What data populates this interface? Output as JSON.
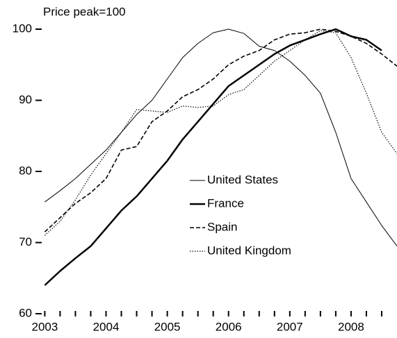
{
  "chart_data": {
    "type": "line",
    "y_label": "Price peak=100",
    "x": [
      2003,
      2003.25,
      2003.5,
      2003.75,
      2004,
      2004.25,
      2004.5,
      2004.75,
      2005,
      2005.25,
      2005.5,
      2005.75,
      2006,
      2006.25,
      2006.5,
      2006.75,
      2007,
      2007.25,
      2007.5,
      2007.75,
      2008,
      2008.25,
      2008.5,
      2008.75
    ],
    "series": [
      {
        "name": "United States",
        "color": "#000000",
        "line_width": 1,
        "line_style": "solid",
        "values": [
          75.7,
          77.3,
          79,
          81,
          83,
          85.5,
          88,
          90,
          93,
          96,
          98,
          99.5,
          100,
          99.4,
          97.6,
          97,
          95.5,
          93.5,
          91,
          85.5,
          79,
          75.7,
          72.4,
          69.5
        ]
      },
      {
        "name": "France",
        "color": "#000000",
        "line_width": 2.5,
        "line_style": "solid",
        "values": [
          64,
          66,
          67.8,
          69.5,
          72,
          74.5,
          76.5,
          79,
          81.5,
          84.5,
          87,
          89.5,
          92,
          93.5,
          95,
          96.5,
          97.7,
          98.5,
          99.3,
          100,
          99,
          98.5,
          97,
          null
        ]
      },
      {
        "name": "Spain",
        "color": "#000000",
        "line_width": 1.6,
        "line_style": "dashed",
        "values": [
          71.5,
          73.5,
          75.5,
          77,
          79,
          83,
          83.5,
          87,
          88.5,
          90.5,
          91.5,
          93,
          95,
          96.2,
          97,
          98.5,
          99.3,
          99.5,
          100,
          99.7,
          99,
          98,
          96.5,
          94.8
        ]
      },
      {
        "name": "United Kingdom",
        "color": "#000000",
        "line_width": 1.2,
        "line_style": "dotted",
        "values": [
          71,
          73,
          76,
          79.5,
          82.5,
          85.5,
          88.7,
          88.5,
          88.3,
          89.2,
          89,
          89.2,
          90.8,
          91.5,
          93.5,
          95.5,
          97,
          98.5,
          99.8,
          99.5,
          96,
          91,
          85.5,
          82.5
        ]
      }
    ],
    "xlim": [
      2002.95,
      2008.75
    ],
    "ylim": [
      60,
      100.1
    ],
    "xticks": [
      2003,
      2004,
      2005,
      2006,
      2007,
      2008
    ],
    "xminorticks": [
      2003.25,
      2003.5,
      2003.75,
      2004.25,
      2004.5,
      2004.75,
      2005.25,
      2005.5,
      2005.75,
      2006.25,
      2006.5,
      2006.75,
      2007.25,
      2007.5,
      2007.75,
      2008.25,
      2008.5
    ],
    "yticks": [
      60,
      70,
      80,
      90,
      100
    ],
    "grid": false,
    "legend": "center"
  }
}
